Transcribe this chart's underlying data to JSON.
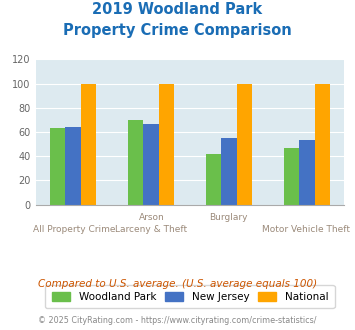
{
  "title_line1": "2019 Woodland Park",
  "title_line2": "Property Crime Comparison",
  "woodland_park": [
    63,
    70,
    42,
    47
  ],
  "new_jersey": [
    64,
    67,
    55,
    53
  ],
  "national": [
    100,
    100,
    100,
    100
  ],
  "colors": {
    "woodland_park": "#6abf4b",
    "new_jersey": "#4472c4",
    "national": "#ffa500"
  },
  "ylim": [
    0,
    120
  ],
  "yticks": [
    0,
    20,
    40,
    60,
    80,
    100,
    120
  ],
  "title_color": "#1a6db5",
  "axis_label_color": "#9b8a7a",
  "background_color": "#ddeaf0",
  "note_text": "Compared to U.S. average. (U.S. average equals 100)",
  "note_color": "#cc5500",
  "footer_text": "© 2025 CityRating.com - https://www.cityrating.com/crime-statistics/",
  "footer_color": "#888888",
  "legend_labels": [
    "Woodland Park",
    "New Jersey",
    "National"
  ],
  "xlabel_top": [
    "",
    "Arson",
    "Burglary",
    ""
  ],
  "xlabel_bot": [
    "All Property Crime",
    "Larceny & Theft",
    "",
    "Motor Vehicle Theft"
  ]
}
